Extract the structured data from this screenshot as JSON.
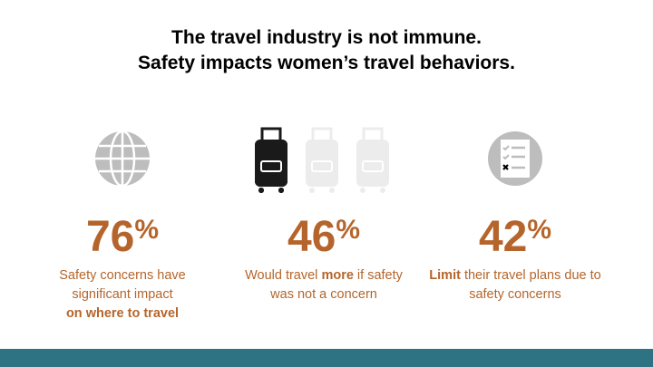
{
  "header": {
    "title_line1": "The travel industry is not immune.",
    "title_line2": "Safety impacts women’s travel behaviors."
  },
  "stats": [
    {
      "number": "76",
      "unit": "%",
      "description": [
        {
          "text": "Safety concerns have significant impact",
          "bold": false
        },
        {
          "text": "on where to travel",
          "bold": true,
          "new_line": true
        }
      ]
    },
    {
      "number": "46",
      "unit": "%",
      "description": [
        {
          "text": "Would travel ",
          "bold": false
        },
        {
          "text": "more",
          "bold": true
        },
        {
          "text": " if safety was not a concern",
          "bold": false
        }
      ]
    },
    {
      "number": "42",
      "unit": "%",
      "description": [
        {
          "text": "Limit",
          "bold": true
        },
        {
          "text": " their travel plans due to safety concerns",
          "bold": false
        }
      ]
    }
  ]
}
